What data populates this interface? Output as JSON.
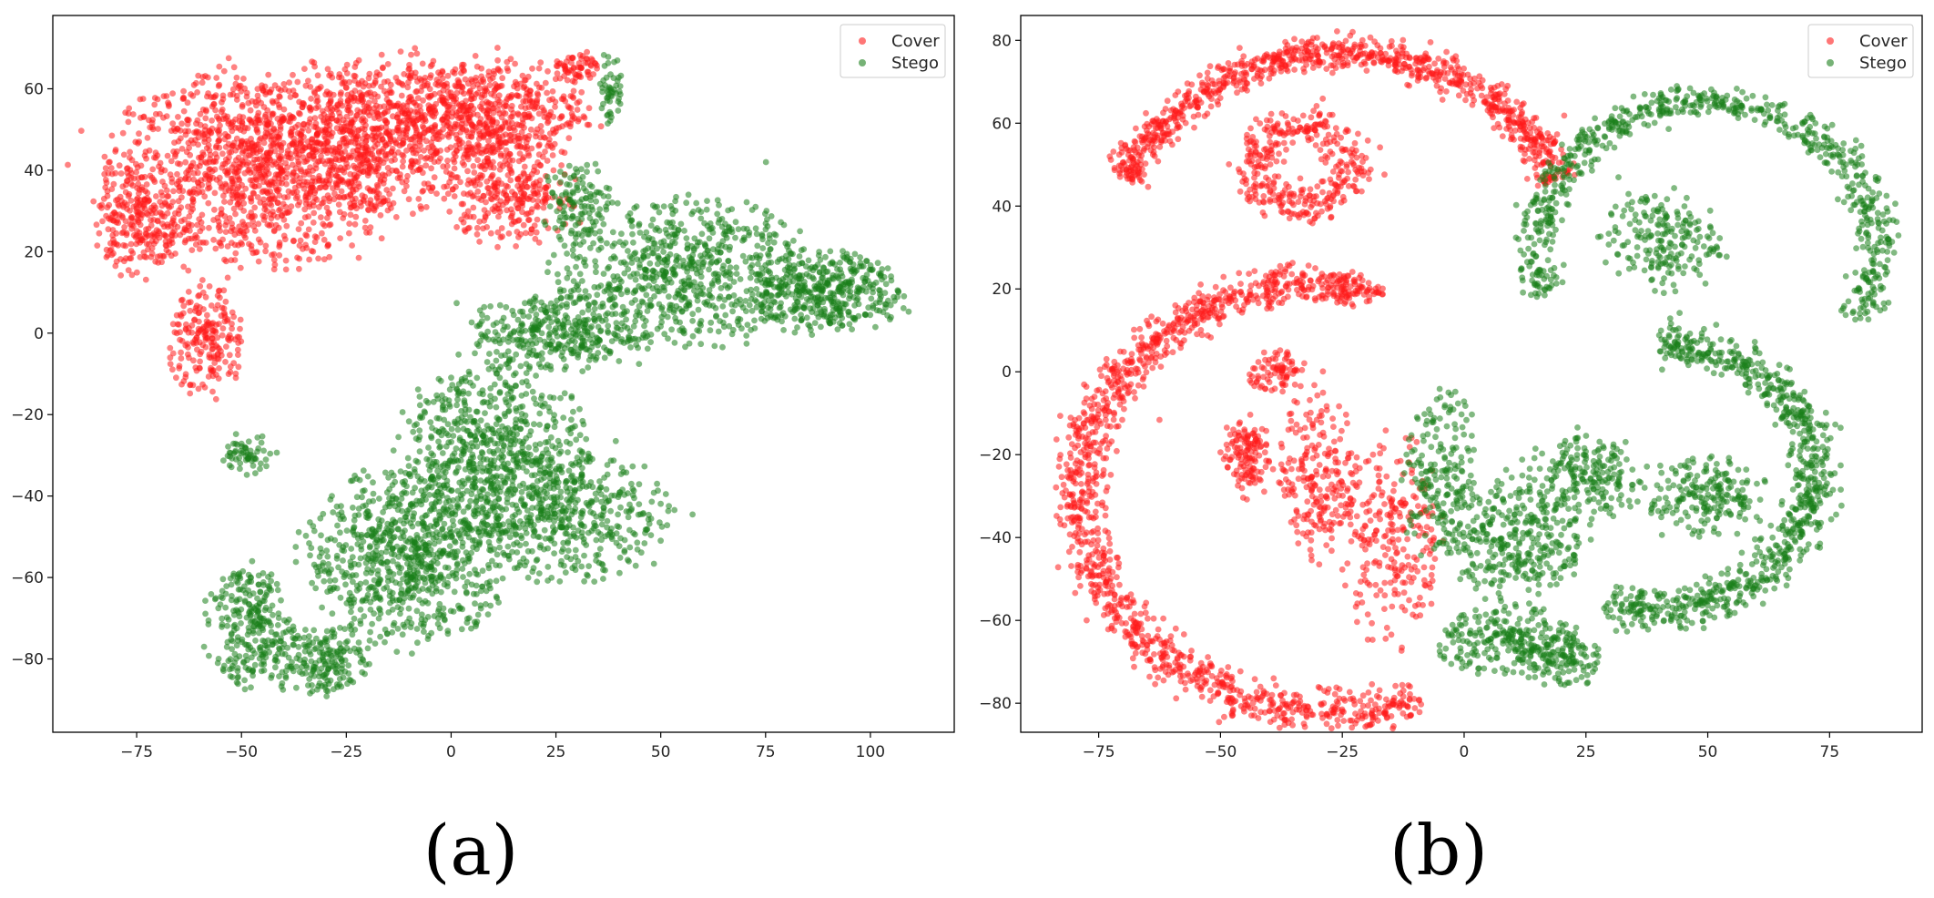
{
  "colors": {
    "cover": "#ff1a1a",
    "stego": "#1a7f1a"
  },
  "chart_data": [
    {
      "type": "scatter",
      "panel_label": "(a)",
      "xlim": [
        -95,
        120
      ],
      "ylim": [
        -98,
        78
      ],
      "xticks": [
        -75,
        -50,
        -25,
        0,
        25,
        50,
        75,
        100
      ],
      "yticks": [
        -80,
        -60,
        -40,
        -20,
        0,
        20,
        40,
        60
      ],
      "xtick_labels": [
        "−75",
        "−50",
        "−25",
        "0",
        "25",
        "50",
        "75",
        "100"
      ],
      "ytick_labels": [
        "−80",
        "−60",
        "−40",
        "−20",
        "0",
        "20",
        "40",
        "60"
      ],
      "legend": {
        "position": "top-right",
        "entries": [
          "Cover",
          "Stego"
        ]
      },
      "grid": false,
      "series": [
        {
          "name": "Cover",
          "color": "#ff1a1a",
          "regions": [
            {
              "cx": -48,
              "cy": 40,
              "rx": 33,
              "ry": 24,
              "n": 1150
            },
            {
              "cx": -18,
              "cy": 48,
              "rx": 28,
              "ry": 20,
              "n": 800
            },
            {
              "cx": 8,
              "cy": 55,
              "rx": 24,
              "ry": 12,
              "n": 500
            },
            {
              "cx": -75,
              "cy": 28,
              "rx": 10,
              "ry": 14,
              "n": 220
            },
            {
              "cx": -58,
              "cy": -2,
              "rx": 9,
              "ry": 13,
              "n": 200
            },
            {
              "cx": 14,
              "cy": 35,
              "rx": 15,
              "ry": 13,
              "n": 300
            },
            {
              "cx": 30,
              "cy": 65,
              "rx": 6,
              "ry": 4,
              "n": 60
            }
          ]
        },
        {
          "name": "Stego",
          "color": "#1a7f1a",
          "regions": [
            {
              "cx": 10,
              "cy": -30,
              "rx": 22,
              "ry": 22,
              "n": 700
            },
            {
              "cx": -10,
              "cy": -55,
              "rx": 25,
              "ry": 20,
              "n": 800
            },
            {
              "cx": 30,
              "cy": -45,
              "rx": 22,
              "ry": 16,
              "n": 400
            },
            {
              "cx": -48,
              "cy": -72,
              "rx": 10,
              "ry": 15,
              "n": 250
            },
            {
              "cx": -32,
              "cy": -80,
              "rx": 12,
              "ry": 9,
              "n": 200
            },
            {
              "cx": -48,
              "cy": -30,
              "rx": 6,
              "ry": 5,
              "n": 60
            },
            {
              "cx": 55,
              "cy": 15,
              "rx": 30,
              "ry": 18,
              "n": 700
            },
            {
              "cx": 90,
              "cy": 10,
              "rx": 18,
              "ry": 10,
              "n": 400
            },
            {
              "cx": 25,
              "cy": 0,
              "rx": 20,
              "ry": 10,
              "n": 350
            },
            {
              "cx": 38,
              "cy": 60,
              "rx": 3,
              "ry": 9,
              "n": 50
            },
            {
              "cx": 30,
              "cy": 32,
              "rx": 8,
              "ry": 10,
              "n": 120
            }
          ]
        }
      ]
    },
    {
      "type": "scatter",
      "panel_label": "(b)",
      "xlim": [
        -91,
        94
      ],
      "ylim": [
        -87,
        86
      ],
      "xticks": [
        -75,
        -50,
        -25,
        0,
        25,
        50,
        75
      ],
      "yticks": [
        -80,
        -60,
        -40,
        -20,
        0,
        20,
        40,
        60,
        80
      ],
      "xtick_labels": [
        "−75",
        "−50",
        "−25",
        "0",
        "25",
        "50",
        "75"
      ],
      "ytick_labels": [
        "−80",
        "−60",
        "−40",
        "−20",
        "0",
        "20",
        "40",
        "60",
        "80"
      ],
      "legend": {
        "position": "top-right",
        "entries": [
          "Cover",
          "Stego"
        ]
      },
      "grid": false,
      "series": [
        {
          "name": "Cover",
          "color": "#ff1a1a",
          "arcs": [
            {
              "cx": -25,
              "cy": 30,
              "r": 47,
              "start": 160,
              "end": 20,
              "n": 900,
              "width": 4
            },
            {
              "cx": -27,
              "cy": -30,
              "r": 52,
              "start": 95,
              "end": 290,
              "n": 1200,
              "width": 5
            },
            {
              "cx": -33,
              "cy": 50,
              "r": 10,
              "start": 0,
              "end": 360,
              "n": 350,
              "width": 5
            }
          ],
          "regions": [
            {
              "cx": -25,
              "cy": 20,
              "rx": 8,
              "ry": 4,
              "n": 120
            },
            {
              "cx": -45,
              "cy": -20,
              "rx": 5,
              "ry": 10,
              "n": 130
            },
            {
              "cx": -30,
              "cy": -25,
              "rx": 8,
              "ry": 20,
              "n": 220
            },
            {
              "cx": -15,
              "cy": -40,
              "rx": 10,
              "ry": 25,
              "n": 250
            },
            {
              "cx": -38,
              "cy": 0,
              "rx": 6,
              "ry": 5,
              "n": 80
            }
          ]
        },
        {
          "name": "Stego",
          "color": "#1a7f1a",
          "arcs": [
            {
              "cx": 50,
              "cy": 30,
              "r": 35,
              "start": 200,
              "end": -30,
              "n": 700,
              "width": 4
            },
            {
              "cx": 40,
              "cy": -25,
              "r": 32,
              "start": 90,
              "end": -110,
              "n": 800,
              "width": 5
            }
          ],
          "regions": [
            {
              "cx": 40,
              "cy": 32,
              "rx": 12,
              "ry": 12,
              "n": 200
            },
            {
              "cx": 10,
              "cy": -40,
              "rx": 15,
              "ry": 15,
              "n": 350
            },
            {
              "cx": 10,
              "cy": -65,
              "rx": 15,
              "ry": 8,
              "n": 250
            },
            {
              "cx": 25,
              "cy": -25,
              "rx": 12,
              "ry": 10,
              "n": 200
            },
            {
              "cx": -5,
              "cy": -25,
              "rx": 8,
              "ry": 20,
              "n": 180
            },
            {
              "cx": 50,
              "cy": -30,
              "rx": 12,
              "ry": 10,
              "n": 200
            },
            {
              "cx": 20,
              "cy": -70,
              "rx": 8,
              "ry": 6,
              "n": 100
            }
          ]
        }
      ]
    }
  ]
}
